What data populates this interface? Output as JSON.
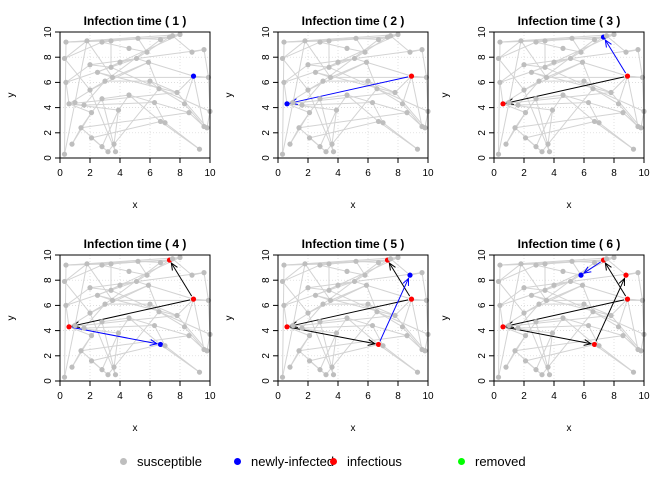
{
  "colors": {
    "susceptible": "#bebebe",
    "newly_infected": "#0000ff",
    "infectious": "#ff0000",
    "removed": "#00ff00",
    "edge": "#d3d3d3",
    "old_transmission": "#000000",
    "new_transmission": "#0000ff",
    "grid": "#d3d3d3"
  },
  "legend": {
    "position": "bottom",
    "items": [
      {
        "label": "susceptible",
        "color": "#bebebe"
      },
      {
        "label": "newly-infected",
        "color": "#0000ff"
      },
      {
        "label": "infectious",
        "color": "#ff0000"
      },
      {
        "label": "removed",
        "color": "#00ff00"
      }
    ]
  },
  "chart_data": {
    "type": "scatter",
    "layout": "2x3 facets",
    "xlabel": "x",
    "ylabel": "y",
    "xlim": [
      0,
      10
    ],
    "ylim": [
      0,
      10
    ],
    "xticks": [
      0,
      2,
      4,
      6,
      8,
      10
    ],
    "yticks": [
      0,
      2,
      4,
      6,
      8,
      10
    ],
    "grid": "dotted",
    "nodes": [
      [
        0.6,
        4.3
      ],
      [
        8.9,
        6.5
      ],
      [
        7.3,
        9.6
      ],
      [
        6.7,
        2.9
      ],
      [
        8.8,
        8.4
      ],
      [
        5.8,
        8.4
      ],
      [
        0.3,
        0.3
      ],
      [
        0.8,
        1.1
      ],
      [
        1.0,
        4.4
      ],
      [
        0.4,
        6.0
      ],
      [
        0.3,
        7.9
      ],
      [
        0.4,
        9.2
      ],
      [
        1.4,
        2.4
      ],
      [
        1.6,
        4.2
      ],
      [
        1.8,
        9.3
      ],
      [
        2.0,
        7.4
      ],
      [
        2.0,
        5.4
      ],
      [
        2.1,
        3.6
      ],
      [
        2.1,
        1.6
      ],
      [
        2.5,
        6.8
      ],
      [
        2.8,
        0.9
      ],
      [
        2.8,
        9.2
      ],
      [
        3.0,
        6.1
      ],
      [
        2.8,
        4.7
      ],
      [
        3.2,
        0.5
      ],
      [
        3.4,
        9.3
      ],
      [
        3.4,
        7.2
      ],
      [
        3.5,
        6.4
      ],
      [
        3.6,
        1.1
      ],
      [
        3.7,
        0.5
      ],
      [
        3.9,
        3.8
      ],
      [
        4.0,
        7.6
      ],
      [
        4.6,
        8.7
      ],
      [
        4.6,
        5.0
      ],
      [
        5.1,
        7.9
      ],
      [
        5.2,
        9.5
      ],
      [
        5.9,
        7.6
      ],
      [
        6.0,
        6.1
      ],
      [
        6.3,
        4.4
      ],
      [
        6.6,
        5.5
      ],
      [
        6.7,
        9.4
      ],
      [
        7.0,
        2.8
      ],
      [
        7.5,
        9.7
      ],
      [
        7.8,
        5.2
      ],
      [
        8.0,
        9.8
      ],
      [
        8.3,
        4.3
      ],
      [
        8.6,
        3.6
      ],
      [
        9.3,
        0.7
      ],
      [
        9.6,
        2.5
      ],
      [
        9.6,
        8.6
      ],
      [
        9.8,
        2.4
      ],
      [
        9.9,
        6.4
      ],
      [
        10.0,
        3.7
      ]
    ],
    "edges": [
      [
        0,
        8
      ],
      [
        0,
        9
      ],
      [
        0,
        13
      ],
      [
        0,
        17
      ],
      [
        0,
        30
      ],
      [
        0,
        43
      ],
      [
        0,
        22
      ],
      [
        1,
        48
      ],
      [
        1,
        51
      ],
      [
        1,
        45
      ],
      [
        1,
        36
      ],
      [
        1,
        43
      ],
      [
        2,
        44
      ],
      [
        2,
        34
      ],
      [
        2,
        25
      ],
      [
        2,
        11
      ],
      [
        2,
        40
      ],
      [
        3,
        41
      ],
      [
        3,
        18
      ],
      [
        3,
        33
      ],
      [
        3,
        47
      ],
      [
        4,
        42
      ],
      [
        4,
        49
      ],
      [
        5,
        32
      ],
      [
        5,
        35
      ],
      [
        6,
        8
      ],
      [
        6,
        11
      ],
      [
        7,
        12
      ],
      [
        7,
        17
      ],
      [
        8,
        14
      ],
      [
        9,
        15
      ],
      [
        10,
        14
      ],
      [
        10,
        21
      ],
      [
        11,
        25
      ],
      [
        11,
        44
      ],
      [
        12,
        17
      ],
      [
        12,
        20
      ],
      [
        13,
        22
      ],
      [
        13,
        38
      ],
      [
        14,
        27
      ],
      [
        15,
        26
      ],
      [
        16,
        22
      ],
      [
        16,
        29
      ],
      [
        17,
        23
      ],
      [
        18,
        24
      ],
      [
        19,
        27
      ],
      [
        19,
        31
      ],
      [
        20,
        24
      ],
      [
        21,
        32
      ],
      [
        21,
        35
      ],
      [
        22,
        37
      ],
      [
        23,
        33
      ],
      [
        23,
        29
      ],
      [
        24,
        28
      ],
      [
        25,
        26
      ],
      [
        26,
        31
      ],
      [
        27,
        36
      ],
      [
        28,
        30
      ],
      [
        30,
        33
      ],
      [
        31,
        34
      ],
      [
        33,
        38
      ],
      [
        34,
        36
      ],
      [
        35,
        40
      ],
      [
        36,
        39
      ],
      [
        37,
        39
      ],
      [
        37,
        43
      ],
      [
        38,
        41
      ],
      [
        38,
        46
      ],
      [
        39,
        45
      ],
      [
        40,
        42
      ],
      [
        41,
        47
      ],
      [
        42,
        44
      ],
      [
        43,
        50
      ],
      [
        45,
        48
      ],
      [
        46,
        48
      ],
      [
        48,
        50
      ],
      [
        49,
        51
      ],
      [
        50,
        52
      ],
      [
        51,
        52
      ],
      [
        22,
        40
      ],
      [
        16,
        36
      ],
      [
        9,
        34
      ],
      [
        12,
        46
      ],
      [
        19,
        43
      ],
      [
        27,
        51
      ],
      [
        15,
        49
      ],
      [
        26,
        52
      ],
      [
        20,
        30
      ],
      [
        31,
        44
      ],
      [
        28,
        39
      ],
      [
        10,
        16
      ]
    ],
    "panels": [
      {
        "title": "Infection time ( 1 )",
        "new": [
          1
        ],
        "infectious": [],
        "old_edges": [],
        "new_edges": []
      },
      {
        "title": "Infection time ( 2 )",
        "new": [
          0
        ],
        "infectious": [
          1
        ],
        "old_edges": [],
        "new_edges": [
          [
            1,
            0
          ]
        ]
      },
      {
        "title": "Infection time ( 3 )",
        "new": [
          2
        ],
        "infectious": [
          0,
          1
        ],
        "old_edges": [
          [
            1,
            0
          ]
        ],
        "new_edges": [
          [
            1,
            2
          ]
        ]
      },
      {
        "title": "Infection time ( 4 )",
        "new": [
          3
        ],
        "infectious": [
          0,
          1,
          2
        ],
        "old_edges": [
          [
            1,
            0
          ],
          [
            1,
            2
          ]
        ],
        "new_edges": [
          [
            0,
            3
          ]
        ]
      },
      {
        "title": "Infection time ( 5 )",
        "new": [
          4
        ],
        "infectious": [
          0,
          1,
          2,
          3
        ],
        "old_edges": [
          [
            1,
            0
          ],
          [
            1,
            2
          ],
          [
            0,
            3
          ]
        ],
        "new_edges": [
          [
            3,
            4
          ]
        ]
      },
      {
        "title": "Infection time ( 6 )",
        "new": [
          5
        ],
        "infectious": [
          0,
          1,
          2,
          3,
          4
        ],
        "old_edges": [
          [
            1,
            0
          ],
          [
            1,
            2
          ],
          [
            0,
            3
          ],
          [
            3,
            4
          ]
        ],
        "new_edges": [
          [
            2,
            5
          ]
        ]
      }
    ]
  }
}
